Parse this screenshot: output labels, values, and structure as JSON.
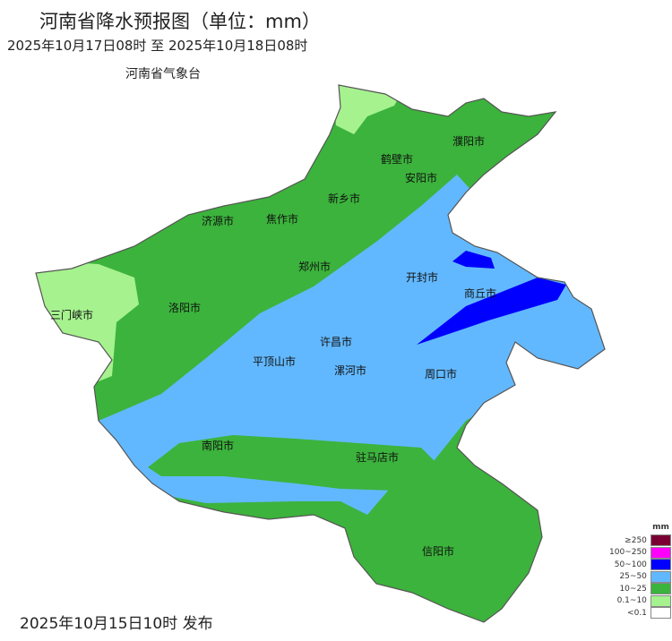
{
  "header": {
    "title": "河南省降水预报图（单位：mm）",
    "period": "2025年10月17日08时  至  2025年10月18日08时",
    "issuer": "河南省气象台"
  },
  "footer": {
    "published": "2025年10月15日10时 发布"
  },
  "cities": [
    {
      "name": "濮阳市"
    },
    {
      "name": "鹤壁市"
    },
    {
      "name": "安阳市"
    },
    {
      "name": "新乡市"
    },
    {
      "name": "济源市"
    },
    {
      "name": "焦作市"
    },
    {
      "name": "郑州市"
    },
    {
      "name": "开封市"
    },
    {
      "name": "商丘市"
    },
    {
      "name": "三门峡市"
    },
    {
      "name": "洛阳市"
    },
    {
      "name": "许昌市"
    },
    {
      "name": "平顶山市"
    },
    {
      "name": "漯河市"
    },
    {
      "name": "周口市"
    },
    {
      "name": "南阳市"
    },
    {
      "name": "驻马店市"
    },
    {
      "name": "信阳市"
    }
  ],
  "legend": {
    "unit": "mm",
    "items": [
      {
        "label": "≥250",
        "color": "#7a0033"
      },
      {
        "label": "100~250",
        "color": "#ff00ff"
      },
      {
        "label": "50~100",
        "color": "#0000ff"
      },
      {
        "label": "25~50",
        "color": "#62b8ff"
      },
      {
        "label": "10~25",
        "color": "#3cb33c"
      },
      {
        "label": "0.1~10",
        "color": "#a6f28f"
      },
      {
        "label": "<0.1",
        "color": "#ffffff"
      }
    ]
  }
}
